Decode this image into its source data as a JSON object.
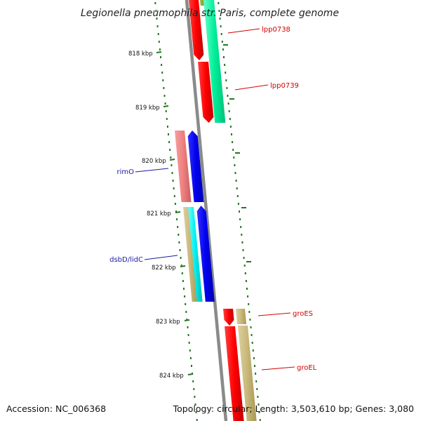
{
  "title": "Legionella pneumophila str. Paris, complete genome",
  "footer": {
    "accession": "Accession: NC_006368",
    "summary": "Topology: circular; Length: 3,503,610 bp; Genes: 3,080"
  },
  "ticks": [
    "818 kbp",
    "819 kbp",
    "820 kbp",
    "821 kbp",
    "822 kbp",
    "823 kbp",
    "824 kbp"
  ],
  "genes": [
    {
      "name": "lpp0738",
      "color": "#d40000"
    },
    {
      "name": "lpp0739",
      "color": "#d40000"
    },
    {
      "name": "rimO",
      "color": "#1a1aa0"
    },
    {
      "name": "dsbD/lidC",
      "color": "#1a1aa0"
    },
    {
      "name": "groES",
      "color": "#d40000"
    },
    {
      "name": "groEL",
      "color": "#d40000"
    }
  ],
  "colors": {
    "backbone": "#8a8a8a",
    "tick": "#1f7a1f",
    "cds_forward": "#ff0000",
    "cds_reverse": "#0000ee",
    "rna_light": "#00ee99",
    "pink": "#f08080",
    "khaki": "#c8b878",
    "cyan": "#00eeee",
    "olive": "#7a9a2a"
  }
}
